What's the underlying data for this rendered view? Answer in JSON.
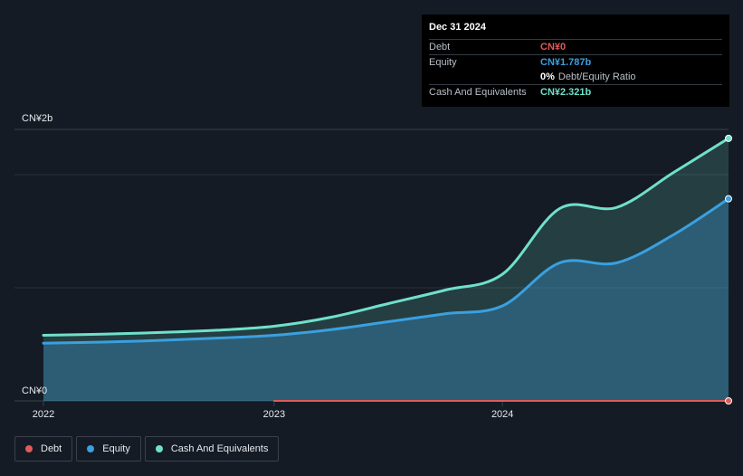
{
  "tooltip": {
    "date": "Dec 31 2024",
    "debt_label": "Debt",
    "debt_value": "CN¥0",
    "equity_label": "Equity",
    "equity_value": "CN¥1.787b",
    "ratio_value": "0%",
    "ratio_label": "Debt/Equity Ratio",
    "cash_label": "Cash And Equivalents",
    "cash_value": "CN¥2.321b"
  },
  "colors": {
    "debt": "#e05a5a",
    "equity": "#3aa0e0",
    "cash": "#6fe0cc",
    "background": "#151b24"
  },
  "legend": {
    "debt": "Debt",
    "equity": "Equity",
    "cash": "Cash And Equivalents"
  },
  "chart_data": {
    "type": "area",
    "y_unit": "CN¥ billions",
    "ylim": [
      0,
      2.4
    ],
    "y_tick_labels": [
      {
        "value": 2.4,
        "label": "CN¥2b"
      },
      {
        "value": 0,
        "label": "CN¥0"
      }
    ],
    "x_ticks": [
      {
        "value": 2022.0,
        "label": "2022"
      },
      {
        "value": 2023.0,
        "label": "2023"
      },
      {
        "value": 2024.0,
        "label": "2024"
      }
    ],
    "xlim": [
      2021.9,
      2025.0
    ],
    "grid": true,
    "legend_position": "bottom-left",
    "series": [
      {
        "name": "Debt",
        "color_key": "debt",
        "x": [
          2023.0,
          2024.99
        ],
        "y": [
          0,
          0
        ]
      },
      {
        "name": "Equity",
        "color_key": "equity",
        "x": [
          2021.99,
          2022.25,
          2022.5,
          2022.75,
          2023.0,
          2023.25,
          2023.5,
          2023.75,
          2024.0,
          2024.25,
          2024.5,
          2024.75,
          2024.99
        ],
        "y": [
          0.51,
          0.52,
          0.535,
          0.555,
          0.58,
          0.63,
          0.7,
          0.77,
          0.84,
          1.22,
          1.22,
          1.47,
          1.787
        ]
      },
      {
        "name": "Cash And Equivalents",
        "color_key": "cash",
        "x": [
          2021.99,
          2022.25,
          2022.5,
          2022.75,
          2023.0,
          2023.25,
          2023.5,
          2023.75,
          2024.0,
          2024.25,
          2024.5,
          2024.75,
          2024.99
        ],
        "y": [
          0.58,
          0.59,
          0.605,
          0.625,
          0.66,
          0.74,
          0.86,
          0.98,
          1.12,
          1.7,
          1.71,
          2.02,
          2.321
        ]
      }
    ]
  }
}
